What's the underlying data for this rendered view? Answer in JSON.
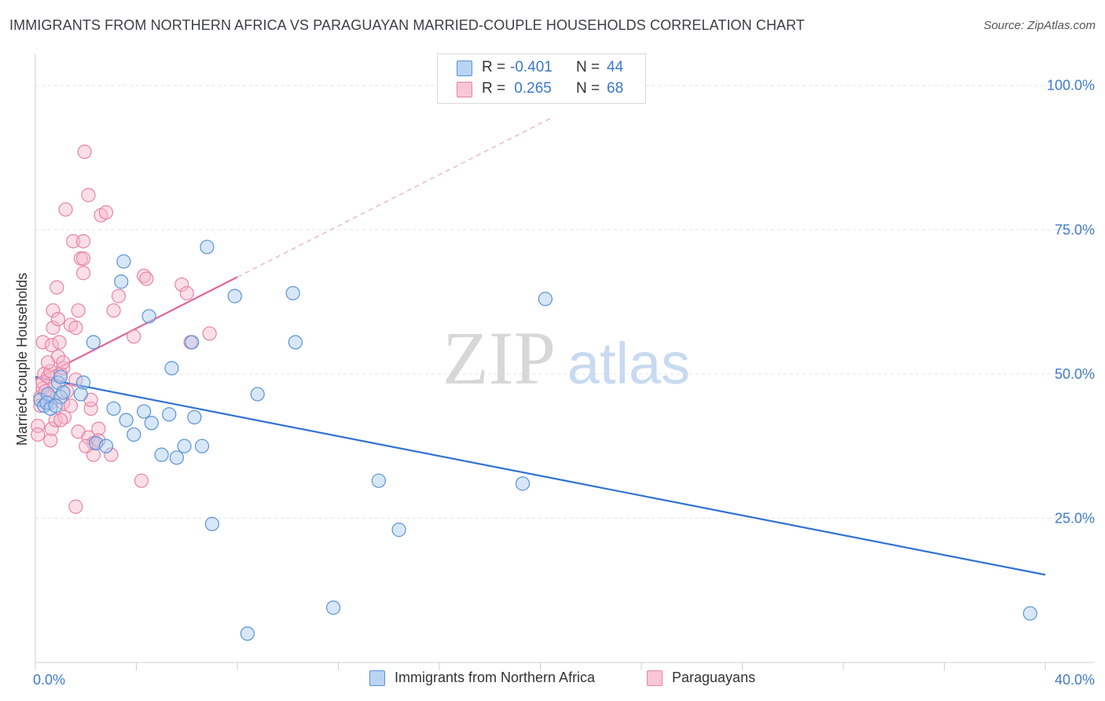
{
  "title": "IMMIGRANTS FROM NORTHERN AFRICA VS PARAGUAYAN MARRIED-COUPLE HOUSEHOLDS CORRELATION CHART",
  "source": "Source: ZipAtlas.com",
  "legend": {
    "r_label": "R =",
    "n_label": "N =",
    "series1": {
      "r": "-0.401",
      "n": "44"
    },
    "series2": {
      "r": " 0.265",
      "n": "68"
    }
  },
  "watermark": {
    "zip": "ZIP",
    "atlas": "atlas"
  },
  "colors": {
    "blue_fill": "#a9c9f0",
    "blue_stroke": "#5a93d6",
    "blue_line": "#2f73d1",
    "pink_fill": "#f6b8cc",
    "pink_stroke": "#e784a4",
    "pink_line": "#e0679a",
    "axis_text": "#3f7bcc",
    "grid": "#e3e3e3"
  },
  "chart_data": {
    "type": "scatter",
    "title": "IMMIGRANTS FROM NORTHERN AFRICA VS PARAGUAYAN MARRIED-COUPLE HOUSEHOLDS CORRELATION CHART",
    "xlabel": "",
    "ylabel": "Married-couple Households",
    "xlim": [
      0,
      40
    ],
    "ylim": [
      0,
      105
    ],
    "x_tick_labels": [
      "0.0%",
      "40.0%"
    ],
    "y_ticks": [
      25,
      50,
      75,
      100
    ],
    "y_tick_labels": [
      "25.0%",
      "50.0%",
      "75.0%",
      "100.0%"
    ],
    "series": [
      {
        "name": "Immigrants from Northern Africa",
        "r": -0.401,
        "n": 44,
        "trend": {
          "x": [
            0,
            40
          ],
          "y": [
            49.5,
            15.2
          ]
        },
        "points": [
          [
            0.2,
            45.5
          ],
          [
            0.35,
            44.5
          ],
          [
            0.5,
            46.5
          ],
          [
            0.45,
            45.0
          ],
          [
            0.6,
            44.0
          ],
          [
            0.9,
            48.5
          ],
          [
            1.0,
            49.5
          ],
          [
            1.0,
            46.0
          ],
          [
            1.1,
            46.8
          ],
          [
            1.9,
            48.5
          ],
          [
            1.8,
            46.5
          ],
          [
            2.3,
            55.5
          ],
          [
            2.4,
            38.0
          ],
          [
            2.8,
            37.5
          ],
          [
            3.1,
            44.0
          ],
          [
            3.4,
            66.0
          ],
          [
            3.5,
            69.5
          ],
          [
            3.6,
            42.0
          ],
          [
            3.9,
            39.5
          ],
          [
            4.3,
            43.5
          ],
          [
            4.5,
            60.0
          ],
          [
            4.6,
            41.5
          ],
          [
            5.0,
            36.0
          ],
          [
            5.3,
            43.0
          ],
          [
            5.4,
            51.0
          ],
          [
            5.6,
            35.5
          ],
          [
            5.9,
            37.5
          ],
          [
            6.2,
            55.5
          ],
          [
            6.3,
            42.5
          ],
          [
            6.6,
            37.5
          ],
          [
            6.8,
            72.0
          ],
          [
            7.0,
            24.0
          ],
          [
            7.9,
            63.5
          ],
          [
            8.4,
            5.0
          ],
          [
            8.8,
            46.5
          ],
          [
            10.2,
            64.0
          ],
          [
            10.3,
            55.5
          ],
          [
            11.8,
            9.5
          ],
          [
            13.6,
            31.5
          ],
          [
            14.4,
            23.0
          ],
          [
            19.3,
            31.0
          ],
          [
            20.2,
            63.0
          ],
          [
            39.4,
            8.5
          ],
          [
            0.8,
            44.5
          ]
        ]
      },
      {
        "name": "Paraguayans",
        "r": 0.265,
        "n": 68,
        "trend": {
          "x": [
            0,
            8
          ],
          "y": [
            49.0,
            66.8
          ]
        },
        "trend_ext": {
          "x": [
            8,
            20.5
          ],
          "y": [
            66.8,
            94.5
          ]
        },
        "points": [
          [
            0.1,
            41.0
          ],
          [
            0.1,
            39.5
          ],
          [
            0.2,
            46.0
          ],
          [
            0.2,
            44.5
          ],
          [
            0.3,
            47.5
          ],
          [
            0.3,
            48.5
          ],
          [
            0.35,
            50.0
          ],
          [
            0.3,
            55.5
          ],
          [
            0.5,
            49.5
          ],
          [
            0.6,
            50.5
          ],
          [
            0.6,
            45.0
          ],
          [
            0.6,
            38.5
          ],
          [
            0.65,
            40.5
          ],
          [
            0.65,
            55.0
          ],
          [
            0.7,
            58.0
          ],
          [
            0.7,
            61.0
          ],
          [
            0.75,
            48.0
          ],
          [
            0.8,
            42.0
          ],
          [
            0.85,
            65.0
          ],
          [
            0.9,
            59.5
          ],
          [
            0.9,
            53.0
          ],
          [
            0.95,
            55.5
          ],
          [
            1.0,
            50.0
          ],
          [
            1.1,
            51.0
          ],
          [
            1.1,
            45.0
          ],
          [
            1.15,
            42.5
          ],
          [
            1.1,
            52.0
          ],
          [
            1.2,
            78.5
          ],
          [
            1.4,
            58.5
          ],
          [
            1.4,
            44.5
          ],
          [
            1.5,
            73.0
          ],
          [
            1.6,
            58.0
          ],
          [
            1.6,
            49.0
          ],
          [
            1.6,
            27.0
          ],
          [
            1.7,
            40.0
          ],
          [
            1.7,
            61.0
          ],
          [
            1.8,
            70.0
          ],
          [
            1.9,
            67.5
          ],
          [
            1.9,
            70.0
          ],
          [
            1.9,
            73.0
          ],
          [
            1.95,
            88.5
          ],
          [
            2.1,
            81.0
          ],
          [
            2.1,
            39.0
          ],
          [
            2.2,
            44.0
          ],
          [
            2.2,
            45.5
          ],
          [
            2.3,
            38.0
          ],
          [
            2.3,
            36.0
          ],
          [
            2.5,
            40.5
          ],
          [
            2.5,
            38.5
          ],
          [
            2.6,
            77.5
          ],
          [
            2.8,
            78.0
          ],
          [
            3.1,
            61.0
          ],
          [
            3.3,
            63.5
          ],
          [
            3.9,
            56.5
          ],
          [
            4.2,
            31.5
          ],
          [
            4.3,
            67.0
          ],
          [
            4.4,
            66.5
          ],
          [
            5.8,
            65.5
          ],
          [
            6.0,
            64.0
          ],
          [
            6.15,
            55.5
          ],
          [
            6.9,
            57.0
          ],
          [
            1.25,
            47.0
          ],
          [
            0.55,
            46.0
          ],
          [
            2.0,
            37.5
          ],
          [
            3.0,
            36.0
          ],
          [
            0.4,
            47.0
          ],
          [
            1.0,
            42.0
          ],
          [
            0.5,
            52.0
          ]
        ]
      }
    ],
    "legend_position": "top-center"
  }
}
